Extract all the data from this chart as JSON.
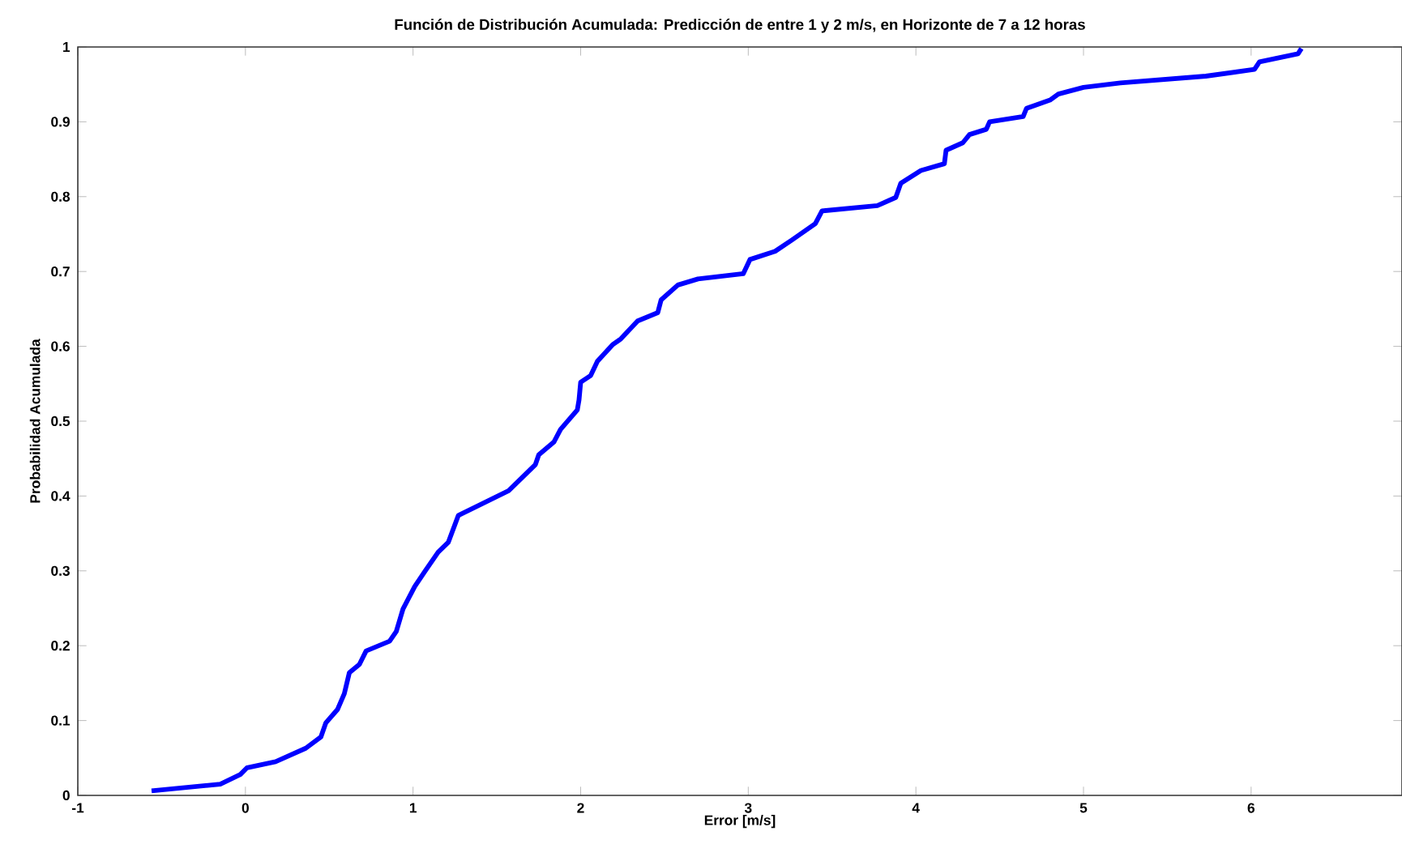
{
  "chart_data": {
    "type": "line",
    "title": "Función de Distribución Acumulada: Predicción de entre 1 y 2 m/s, en Horizonte de 7 a 12 horas",
    "xlabel": "Error [m/s]",
    "ylabel": "Probabilidad Acumulada",
    "xlim": [
      -1,
      6.9
    ],
    "ylim": [
      0,
      1
    ],
    "xticks": [
      -1,
      0,
      1,
      2,
      3,
      4,
      5,
      6
    ],
    "yticks": [
      0,
      0.1,
      0.2,
      0.3,
      0.4,
      0.5,
      0.6,
      0.7,
      0.8,
      0.9,
      1
    ],
    "line_style": "solid",
    "series": [
      {
        "color": "#0000ff",
        "x": [
          -0.56,
          -0.15,
          -0.03,
          0.01,
          0.18,
          0.36,
          0.45,
          0.48,
          0.55,
          0.59,
          0.62,
          0.68,
          0.72,
          0.86,
          0.9,
          0.94,
          1.01,
          1.07,
          1.15,
          1.21,
          1.27,
          1.57,
          1.73,
          1.75,
          1.84,
          1.88,
          1.98,
          1.99,
          2.0,
          2.06,
          2.1,
          2.19,
          2.24,
          2.34,
          2.46,
          2.48,
          2.58,
          2.7,
          2.97,
          3.01,
          3.16,
          3.26,
          3.4,
          3.44,
          3.77,
          3.88,
          3.91,
          4.03,
          4.17,
          4.18,
          4.28,
          4.32,
          4.42,
          4.44,
          4.64,
          4.66,
          4.8,
          4.85,
          5.0,
          5.22,
          5.73,
          6.02,
          6.05,
          6.28,
          6.3
        ],
        "values": [
          0.006,
          0.015,
          0.028,
          0.037,
          0.045,
          0.063,
          0.078,
          0.097,
          0.115,
          0.136,
          0.164,
          0.175,
          0.193,
          0.206,
          0.219,
          0.249,
          0.279,
          0.299,
          0.325,
          0.338,
          0.374,
          0.407,
          0.442,
          0.455,
          0.472,
          0.489,
          0.515,
          0.528,
          0.552,
          0.561,
          0.58,
          0.602,
          0.61,
          0.634,
          0.645,
          0.662,
          0.682,
          0.69,
          0.697,
          0.716,
          0.727,
          0.742,
          0.764,
          0.781,
          0.788,
          0.799,
          0.818,
          0.835,
          0.844,
          0.862,
          0.872,
          0.883,
          0.89,
          0.9,
          0.907,
          0.918,
          0.929,
          0.937,
          0.946,
          0.952,
          0.961,
          0.97,
          0.98,
          0.991,
          0.998
        ]
      }
    ]
  }
}
